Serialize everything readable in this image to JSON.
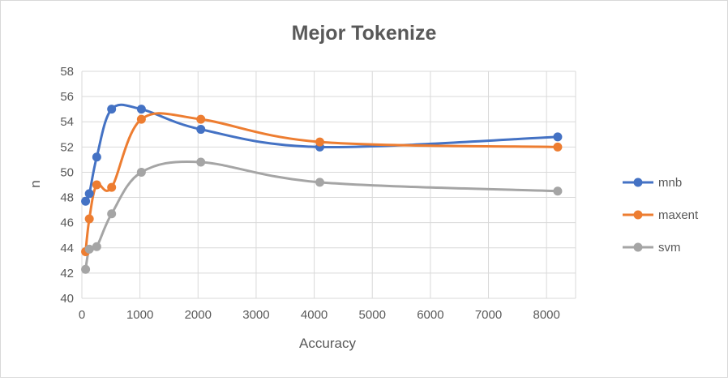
{
  "chart_data": {
    "type": "line",
    "title": "Mejor Tokenize",
    "xlabel": "Accuracy",
    "ylabel": "n",
    "xlim": [
      0,
      8500
    ],
    "ylim": [
      40,
      58
    ],
    "xticks": [
      0,
      1000,
      2000,
      3000,
      4000,
      5000,
      6000,
      7000,
      8000
    ],
    "yticks": [
      40,
      42,
      44,
      46,
      48,
      50,
      52,
      54,
      56,
      58
    ],
    "grid": true,
    "smooth": true,
    "legend_position": "right",
    "series": [
      {
        "name": "mnb",
        "color": "#4472C4",
        "points": [
          [
            64,
            47.7
          ],
          [
            128,
            48.3
          ],
          [
            256,
            51.2
          ],
          [
            512,
            55.0
          ],
          [
            1024,
            55.0
          ],
          [
            2048,
            53.4
          ],
          [
            4096,
            52.0
          ],
          [
            8192,
            52.8
          ]
        ]
      },
      {
        "name": "maxent",
        "color": "#ED7D31",
        "points": [
          [
            64,
            43.7
          ],
          [
            128,
            46.3
          ],
          [
            256,
            49.0
          ],
          [
            512,
            48.8
          ],
          [
            1024,
            54.2
          ],
          [
            2048,
            54.2
          ],
          [
            4096,
            52.4
          ],
          [
            8192,
            52.0
          ]
        ]
      },
      {
        "name": "svm",
        "color": "#A5A5A5",
        "points": [
          [
            64,
            42.3
          ],
          [
            128,
            43.9
          ],
          [
            256,
            44.1
          ],
          [
            512,
            46.7
          ],
          [
            1024,
            50.0
          ],
          [
            2048,
            50.8
          ],
          [
            4096,
            49.2
          ],
          [
            8192,
            48.5
          ]
        ]
      }
    ]
  }
}
